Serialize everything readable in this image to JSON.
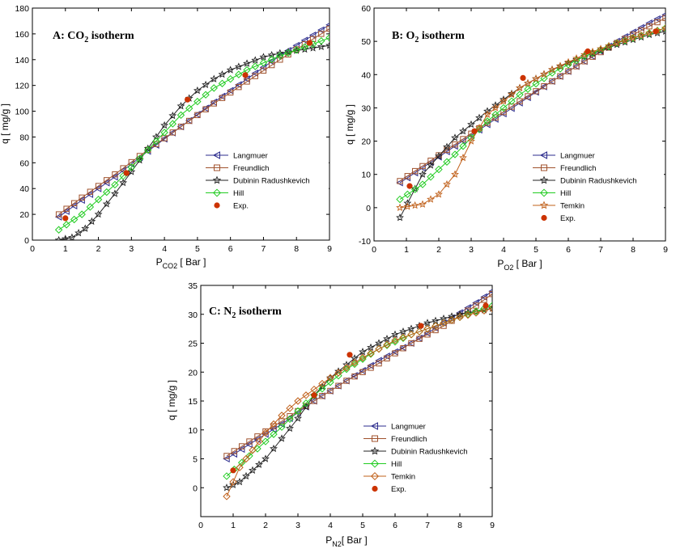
{
  "colors": {
    "langmuer": "#2b2b8c",
    "freundlich": "#a0522d",
    "dubinin": "#222222",
    "hill": "#22cc22",
    "temkin": "#c0601a",
    "exp": "#cc3300"
  },
  "chart_data": [
    {
      "type": "line",
      "id": "A",
      "title_main": "A: CO",
      "title_sub": "2",
      "title_rest": " isotherm",
      "xlabel_main": "P",
      "xlabel_sub": "CO2",
      "xlabel_rest": " [ Bar ]",
      "ylabel": "q [ mg/g ]",
      "xlim": [
        0,
        9
      ],
      "ylim": [
        0,
        180
      ],
      "xticks": [
        0,
        1,
        2,
        3,
        4,
        5,
        6,
        7,
        8,
        9
      ],
      "yticks": [
        0,
        20,
        40,
        60,
        80,
        100,
        120,
        140,
        160,
        180
      ],
      "legend_position": "lower-right",
      "series": [
        {
          "name": "Langmuer",
          "key": "langmuer",
          "marker": "tri-left",
          "x": [
            0.8,
            1.5,
            2.5,
            3.5,
            4.5,
            5.5,
            6.5,
            7.5,
            8.5,
            9
          ],
          "y": [
            18,
            31,
            49,
            69,
            88,
            107,
            125,
            143,
            159,
            167
          ]
        },
        {
          "name": "Freundlich",
          "key": "freundlich",
          "marker": "square",
          "x": [
            0.8,
            1.5,
            2.5,
            3.5,
            4.5,
            5.5,
            6.5,
            7.5,
            8.5,
            9
          ],
          "y": [
            20,
            33,
            51,
            70,
            88,
            106,
            123,
            140,
            156,
            164
          ]
        },
        {
          "name": "Dubinin Radushkevich",
          "key": "dubinin",
          "marker": "star",
          "x": [
            0.8,
            1.2,
            1.6,
            2,
            2.5,
            3,
            3.5,
            4,
            4.5,
            5,
            5.5,
            6,
            6.5,
            7,
            7.5,
            8,
            8.5,
            9
          ],
          "y": [
            0,
            2,
            9,
            20,
            36,
            53,
            71,
            89,
            104,
            116,
            125,
            132,
            137,
            142,
            145,
            147,
            149,
            151
          ]
        },
        {
          "name": "Hill",
          "key": "hill",
          "marker": "diamond",
          "x": [
            0.8,
            1.5,
            2.5,
            3.5,
            4.5,
            5.5,
            6.5,
            7.5,
            8.5,
            9
          ],
          "y": [
            8,
            20,
            43,
            70,
            97,
            118,
            132,
            143,
            152,
            157
          ]
        }
      ],
      "experimental": {
        "name": "Exp.",
        "key": "exp",
        "x": [
          1.0,
          2.85,
          4.7,
          6.45,
          8.4
        ],
        "y": [
          17,
          52,
          109,
          128,
          153
        ]
      }
    },
    {
      "type": "line",
      "id": "B",
      "title_main": "B: O",
      "title_sub": "2",
      "title_rest": " isotherm",
      "xlabel_main": "P",
      "xlabel_sub": "O2",
      "xlabel_rest": " [ Bar ]",
      "ylabel": "q [ mg/g ]",
      "xlim": [
        0,
        9
      ],
      "ylim": [
        -10,
        60
      ],
      "xticks": [
        0,
        1,
        2,
        3,
        4,
        5,
        6,
        7,
        8,
        9
      ],
      "yticks": [
        -10,
        0,
        10,
        20,
        30,
        40,
        50,
        60
      ],
      "legend_position": "lower-right",
      "series": [
        {
          "name": "Langmuer",
          "key": "langmuer",
          "marker": "tri-left",
          "x": [
            0.8,
            1.5,
            2.5,
            3.5,
            4.5,
            5.5,
            6.5,
            7.5,
            8.5,
            9
          ],
          "y": [
            7.5,
            12,
            18.5,
            25,
            31.5,
            38,
            44,
            50,
            55.5,
            58
          ]
        },
        {
          "name": "Freundlich",
          "key": "freundlich",
          "marker": "square",
          "x": [
            0.8,
            1.5,
            2.5,
            3.5,
            4.5,
            5.5,
            6.5,
            7.5,
            8.5,
            9
          ],
          "y": [
            8,
            12.5,
            19,
            25.5,
            32,
            38,
            44,
            49.5,
            54.5,
            57
          ]
        },
        {
          "name": "Dubinin Radushkevich",
          "key": "dubinin",
          "marker": "star",
          "x": [
            0.8,
            1.5,
            2.5,
            3.5,
            4.5,
            5.5,
            6.5,
            7.5,
            8.5,
            9
          ],
          "y": [
            -3,
            10,
            21,
            29,
            36,
            41.5,
            45.5,
            49,
            52,
            53
          ]
        },
        {
          "name": "Hill",
          "key": "hill",
          "marker": "diamond",
          "x": [
            0.8,
            1.5,
            2.5,
            3.5,
            4.5,
            5.5,
            6.5,
            7.5,
            8.5,
            9
          ],
          "y": [
            2.5,
            7,
            16,
            26,
            34,
            40.5,
            45.5,
            49.5,
            52.5,
            54
          ]
        },
        {
          "name": "Temkin",
          "key": "temkin",
          "marker": "star",
          "x": [
            0.8,
            1.5,
            2,
            2.5,
            3,
            3.5,
            4.5,
            5.5,
            6.5,
            7.5,
            8.5,
            9
          ],
          "y": [
            0,
            1,
            4,
            10,
            20,
            28,
            36,
            41.5,
            46,
            49.5,
            52.5,
            54
          ]
        }
      ],
      "experimental": {
        "name": "Exp.",
        "key": "exp",
        "x": [
          1.1,
          3.1,
          4.6,
          6.6,
          8.7
        ],
        "y": [
          6.5,
          23,
          39,
          47,
          53
        ]
      }
    },
    {
      "type": "line",
      "id": "C",
      "title_main": "C: N",
      "title_sub": "2",
      "title_rest": " isotherm",
      "xlabel_main": "P",
      "xlabel_sub": "N2",
      "xlabel_rest": "[ Bar ]",
      "ylabel": "q [ mg/g ]",
      "xlim": [
        0,
        9
      ],
      "ylim": [
        -5,
        35
      ],
      "xticks": [
        0,
        1,
        2,
        3,
        4,
        5,
        6,
        7,
        8,
        9
      ],
      "yticks": [
        0,
        5,
        10,
        15,
        20,
        25,
        30,
        35
      ],
      "legend_position": "lower-right",
      "series": [
        {
          "name": "Langmuer",
          "key": "langmuer",
          "marker": "tri-left",
          "x": [
            0.8,
            1.5,
            2.5,
            3.5,
            4.5,
            5.5,
            6.5,
            7.5,
            8.5,
            9
          ],
          "y": [
            5,
            7.5,
            11,
            15,
            18.5,
            22,
            25,
            28.5,
            32,
            34
          ]
        },
        {
          "name": "Freundlich",
          "key": "freundlich",
          "marker": "square",
          "x": [
            0.8,
            1.5,
            2.5,
            3.5,
            4.5,
            5.5,
            6.5,
            7.5,
            8.5,
            9
          ],
          "y": [
            5.5,
            8,
            11.5,
            15,
            18.5,
            21.5,
            25,
            28,
            31.5,
            33.5
          ]
        },
        {
          "name": "Dubinin Radushkevich",
          "key": "dubinin",
          "marker": "star",
          "x": [
            0.8,
            1.2,
            1.6,
            2,
            2.5,
            3,
            3.5,
            4,
            5,
            6,
            7,
            8,
            9
          ],
          "y": [
            0,
            1,
            3,
            5,
            8.5,
            12,
            16,
            19,
            23.5,
            26.5,
            28.5,
            30,
            31
          ]
        },
        {
          "name": "Hill",
          "key": "hill",
          "marker": "diamond",
          "x": [
            0.8,
            1.5,
            2.5,
            3.5,
            4.5,
            5.5,
            6.5,
            7.5,
            8.5,
            9
          ],
          "y": [
            2,
            5.5,
            10.5,
            16,
            20.5,
            24,
            26.5,
            28.5,
            30.5,
            31.5
          ]
        },
        {
          "name": "Temkin",
          "key": "temkin",
          "marker": "diamond",
          "x": [
            0.8,
            1.2,
            1.6,
            2,
            2.5,
            3,
            3.5,
            4,
            5,
            6,
            7,
            8,
            9
          ],
          "y": [
            -1.5,
            3.5,
            6.5,
            9.5,
            12.5,
            15,
            17,
            19,
            22.5,
            25.5,
            27.5,
            29.5,
            31
          ]
        }
      ],
      "experimental": {
        "name": "Exp.",
        "key": "exp",
        "x": [
          1.0,
          3.5,
          4.6,
          6.8,
          8.8
        ],
        "y": [
          3,
          16,
          23,
          28,
          31.5
        ]
      }
    }
  ]
}
